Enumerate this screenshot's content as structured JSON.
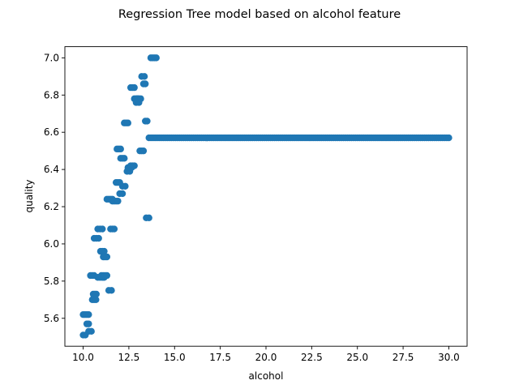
{
  "chart_data": {
    "type": "scatter",
    "title": "Regression Tree model based on alcohol feature",
    "xlabel": "alcohol",
    "ylabel": "quality",
    "xlim": [
      9.0,
      31.0
    ],
    "ylim": [
      5.45,
      7.06
    ],
    "xticks": [
      10.0,
      12.5,
      15.0,
      17.5,
      20.0,
      22.5,
      25.0,
      27.5,
      30.0
    ],
    "xtick_labels": [
      "10.0",
      "12.5",
      "15.0",
      "17.5",
      "20.0",
      "22.5",
      "25.0",
      "27.5",
      "30.0"
    ],
    "yticks": [
      5.6,
      5.8,
      6.0,
      6.2,
      6.4,
      6.6,
      6.8,
      7.0
    ],
    "ytick_labels": [
      "5.6",
      "5.8",
      "6.0",
      "6.2",
      "6.4",
      "6.6",
      "6.8",
      "7.0"
    ],
    "grid": false,
    "marker_color": "#1f77b4",
    "segments": [
      {
        "x0": 10.0,
        "x1": 10.12,
        "y": 5.51
      },
      {
        "x0": 10.0,
        "x1": 10.3,
        "y": 5.62
      },
      {
        "x0": 10.2,
        "x1": 10.3,
        "y": 5.57
      },
      {
        "x0": 10.3,
        "x1": 10.45,
        "y": 5.53
      },
      {
        "x0": 10.4,
        "x1": 10.6,
        "y": 5.83
      },
      {
        "x0": 10.5,
        "x1": 10.7,
        "y": 5.7
      },
      {
        "x0": 10.55,
        "x1": 10.72,
        "y": 5.73
      },
      {
        "x0": 10.6,
        "x1": 10.85,
        "y": 6.03
      },
      {
        "x0": 10.8,
        "x1": 11.15,
        "y": 5.82
      },
      {
        "x0": 10.8,
        "x1": 11.05,
        "y": 6.08
      },
      {
        "x0": 10.95,
        "x1": 11.15,
        "y": 5.96
      },
      {
        "x0": 11.0,
        "x1": 11.3,
        "y": 5.83
      },
      {
        "x0": 11.1,
        "x1": 11.3,
        "y": 5.93
      },
      {
        "x0": 11.3,
        "x1": 11.6,
        "y": 6.24
      },
      {
        "x0": 11.4,
        "x1": 11.55,
        "y": 5.75
      },
      {
        "x0": 11.5,
        "x1": 11.7,
        "y": 6.08
      },
      {
        "x0": 11.6,
        "x1": 11.9,
        "y": 6.23
      },
      {
        "x0": 11.8,
        "x1": 12.0,
        "y": 6.33
      },
      {
        "x0": 11.85,
        "x1": 12.05,
        "y": 6.51
      },
      {
        "x0": 12.0,
        "x1": 12.15,
        "y": 6.27
      },
      {
        "x0": 12.05,
        "x1": 12.25,
        "y": 6.46
      },
      {
        "x0": 12.15,
        "x1": 12.3,
        "y": 6.31
      },
      {
        "x0": 12.25,
        "x1": 12.45,
        "y": 6.65
      },
      {
        "x0": 12.4,
        "x1": 12.55,
        "y": 6.39
      },
      {
        "x0": 12.45,
        "x1": 12.65,
        "y": 6.41
      },
      {
        "x0": 12.6,
        "x1": 12.8,
        "y": 6.42
      },
      {
        "x0": 12.6,
        "x1": 12.8,
        "y": 6.84
      },
      {
        "x0": 12.8,
        "x1": 13.0,
        "y": 6.78
      },
      {
        "x0": 12.9,
        "x1": 13.05,
        "y": 6.76
      },
      {
        "x0": 12.95,
        "x1": 13.15,
        "y": 6.78
      },
      {
        "x0": 13.1,
        "x1": 13.3,
        "y": 6.5
      },
      {
        "x0": 13.2,
        "x1": 13.35,
        "y": 6.9
      },
      {
        "x0": 13.3,
        "x1": 13.4,
        "y": 6.86
      },
      {
        "x0": 13.4,
        "x1": 13.5,
        "y": 6.66
      },
      {
        "x0": 13.45,
        "x1": 13.6,
        "y": 6.14
      },
      {
        "x0": 13.7,
        "x1": 14.0,
        "y": 7.0
      },
      {
        "x0": 13.6,
        "x1": 30.0,
        "y": 6.57
      }
    ]
  }
}
